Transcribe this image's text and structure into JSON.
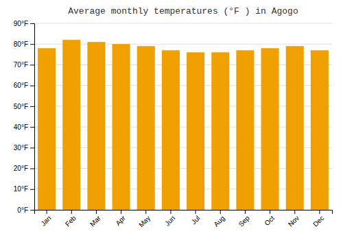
{
  "chart_data": {
    "type": "bar",
    "title": "Average monthly temperatures (°F ) in Agogo",
    "categories": [
      "Jan",
      "Feb",
      "Mar",
      "Apr",
      "May",
      "Jun",
      "Jul",
      "Aug",
      "Sep",
      "Oct",
      "Nov",
      "Dec"
    ],
    "values": [
      78,
      82,
      81,
      80,
      79,
      77,
      76,
      76,
      77,
      78,
      79,
      77
    ],
    "color": "#F0A000",
    "ylim": [
      0,
      90
    ],
    "yticks": [
      {
        "value": 0,
        "label": "0°F"
      },
      {
        "value": 10,
        "label": "10°F"
      },
      {
        "value": 20,
        "label": "20°F"
      },
      {
        "value": 30,
        "label": "30°F"
      },
      {
        "value": 40,
        "label": "40°F"
      },
      {
        "value": 50,
        "label": "50°F"
      },
      {
        "value": 60,
        "label": "60°F"
      },
      {
        "value": 70,
        "label": "70°F"
      },
      {
        "value": 80,
        "label": "80°F"
      },
      {
        "value": 90,
        "label": "90°F"
      }
    ],
    "grid": true
  }
}
